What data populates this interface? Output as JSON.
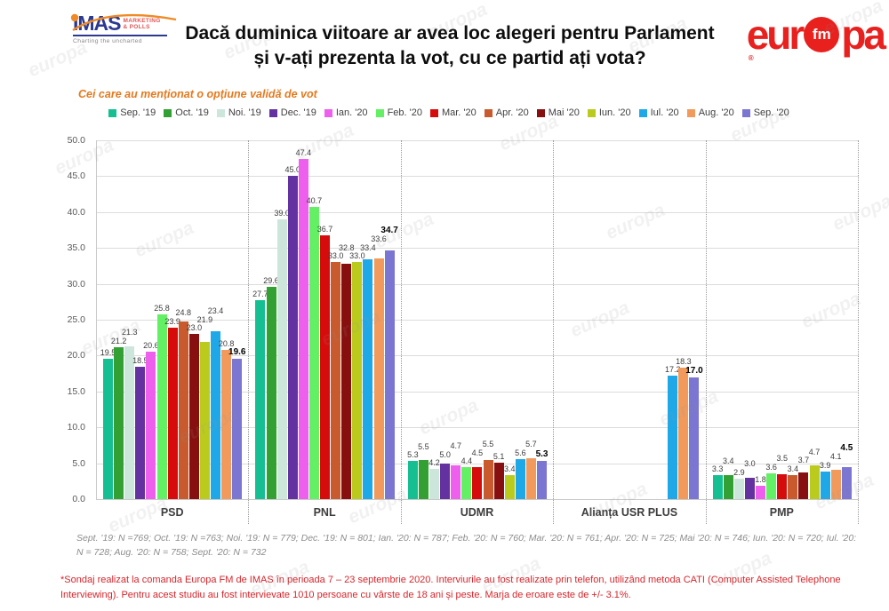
{
  "header": {
    "imas": {
      "name": "IMAS",
      "sub1": "MARKETING",
      "sub2": "& POLLS",
      "tagline": "Charting the uncharted",
      "brand_blue": "#2b3990",
      "accent_orange": "#f08a24"
    },
    "title_line1": "Dacă duminica viitoare ar avea loc alegeri pentru Parlament",
    "title_line2": "și v-ați prezenta la vot, cu ce partid ați vota?",
    "europafm": {
      "left": "eur",
      "badge": "fm",
      "right": "pa",
      "reg": "®",
      "brand_red": "#e8201e"
    }
  },
  "subtitle": "Cei care au menționat o opțiune validă de vot",
  "subtitle_color": "#e5791e",
  "watermark": "europa",
  "chart_data": {
    "type": "bar",
    "title": "Dacă duminica viitoare ar avea loc alegeri pentru Parlament și v-ați prezenta la vot, cu ce partid ați vota?",
    "subtitle": "Cei care au menționat o opțiune validă de vot",
    "xlabel": "",
    "ylabel": "",
    "ylim": [
      0,
      50
    ],
    "ytick_step": 5,
    "ytick_labels": [
      "0.0",
      "5.0",
      "10.0",
      "15.0",
      "20.0",
      "25.0",
      "30.0",
      "35.0",
      "40.0",
      "45.0",
      "50.0"
    ],
    "grid": true,
    "legend_position": "top",
    "categories": [
      "PSD",
      "PNL",
      "UDMR",
      "Alianța USR PLUS",
      "PMP"
    ],
    "series": [
      {
        "name": "Sep. '19",
        "color": "#16bf92",
        "values": [
          19.5,
          27.7,
          5.3,
          null,
          3.3
        ]
      },
      {
        "name": "Oct. '19",
        "color": "#32a032",
        "values": [
          21.2,
          29.6,
          5.5,
          null,
          3.4
        ]
      },
      {
        "name": "Noi. '19",
        "color": "#cde6dc",
        "values": [
          21.3,
          39.0,
          4.2,
          null,
          2.9
        ]
      },
      {
        "name": "Dec. '19",
        "color": "#6432a0",
        "values": [
          18.5,
          45.0,
          5.0,
          null,
          3.0
        ]
      },
      {
        "name": "Ian. '20",
        "color": "#ee5fee",
        "values": [
          20.6,
          47.4,
          4.7,
          null,
          1.8
        ]
      },
      {
        "name": "Feb. '20",
        "color": "#64f064",
        "values": [
          25.8,
          40.7,
          4.4,
          null,
          3.6
        ]
      },
      {
        "name": "Mar. '20",
        "color": "#d60c0c",
        "values": [
          23.9,
          36.7,
          4.5,
          null,
          3.5
        ]
      },
      {
        "name": "Apr. '20",
        "color": "#c85a2d",
        "values": [
          24.8,
          33.0,
          5.5,
          null,
          3.4
        ]
      },
      {
        "name": "Mai '20",
        "color": "#870f0f",
        "values": [
          23.0,
          32.8,
          5.1,
          null,
          3.7
        ]
      },
      {
        "name": "Iun. '20",
        "color": "#bacb1e",
        "values": [
          21.9,
          33.0,
          3.4,
          null,
          4.7
        ]
      },
      {
        "name": "Iul. '20",
        "color": "#1fa8e8",
        "values": [
          23.4,
          33.4,
          5.6,
          17.2,
          3.9
        ]
      },
      {
        "name": "Aug. '20",
        "color": "#f19a5c",
        "values": [
          20.8,
          33.6,
          5.7,
          18.3,
          4.1
        ]
      },
      {
        "name": "Sep. '20",
        "color": "#7a76d1",
        "values": [
          19.6,
          34.7,
          5.3,
          17.0,
          4.5
        ],
        "bold": true
      }
    ]
  },
  "footnotes": {
    "sample": "Sept. '19: N =769; Oct. '19: N =763; Noi. '19: N = 779; Dec. '19: N = 801; Ian. '20: N = 787; Feb. '20: N = 760; Mar. '20: N = 761; Apr. '20: N = 725; Mai '20: N = 746; Iun. '20: N = 720; Iul. '20: N = 728; Aug. '20: N = 758; Sept. '20: N = 732",
    "methodology": "*Sondaj realizat la comanda Europa FM de IMAS în perioada 7 – 23 septembrie 2020. Interviurile au fost realizate prin telefon, utilizând metoda CATI (Computer Assisted Telephone Interviewing). Pentru acest studiu au fost intervievate 1010 persoane cu vârste de 18 ani și peste. Marja de eroare este de +/- 3.1%.",
    "methodology_color": "#d6252b"
  }
}
